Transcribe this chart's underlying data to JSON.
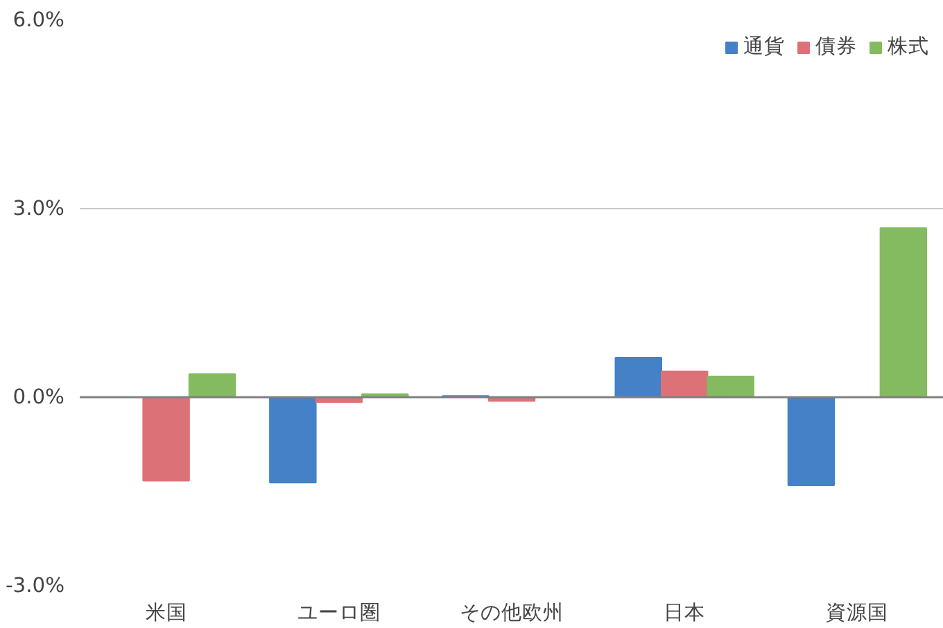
{
  "chart_data": {
    "type": "bar",
    "categories": [
      "米国",
      "ユーロ圏",
      "その他欧州",
      "日本",
      "資源国"
    ],
    "series": [
      {
        "name": "通貨",
        "color": "#4481c6",
        "values": [
          0,
          -1.36,
          0.02,
          0.63,
          -1.4
        ]
      },
      {
        "name": "債券",
        "color": "#dc7278",
        "values": [
          -1.33,
          -0.08,
          -0.06,
          0.41,
          0
        ]
      },
      {
        "name": "株式",
        "color": "#84bb60",
        "values": [
          0.37,
          0.05,
          0,
          0.33,
          2.69
        ]
      }
    ],
    "ylim": [
      -3,
      6
    ],
    "yticks": [
      {
        "value": -3,
        "label": "-3.0%"
      },
      {
        "value": 0,
        "label": "0.0%"
      },
      {
        "value": 3,
        "label": "3.0%"
      },
      {
        "value": 6,
        "label": "6.0%"
      }
    ],
    "grid": "y",
    "legend": "top right"
  }
}
